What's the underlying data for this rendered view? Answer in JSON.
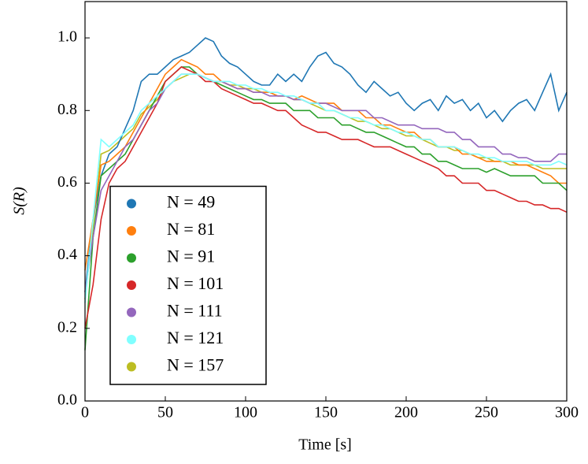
{
  "chart_data": {
    "type": "line",
    "xlabel": "Time [s]",
    "ylabel": "S(R)",
    "xlim": [
      0,
      300
    ],
    "ylim": [
      0,
      1.1
    ],
    "xticks": [
      0,
      50,
      100,
      150,
      200,
      250,
      300
    ],
    "yticks": [
      {
        "value": 0,
        "label": "0.0"
      },
      0.2,
      0.4,
      0.6,
      0.8,
      {
        "value": 1,
        "label": "1.0"
      }
    ],
    "legend": "lower left",
    "x": [
      0,
      5,
      10,
      15,
      20,
      25,
      30,
      35,
      40,
      45,
      50,
      55,
      60,
      65,
      70,
      75,
      80,
      85,
      90,
      95,
      100,
      105,
      110,
      115,
      120,
      125,
      130,
      135,
      140,
      145,
      150,
      155,
      160,
      165,
      170,
      175,
      180,
      185,
      190,
      195,
      200,
      205,
      210,
      215,
      220,
      225,
      230,
      235,
      240,
      245,
      250,
      255,
      260,
      265,
      270,
      275,
      280,
      285,
      290,
      295,
      300
    ],
    "series": [
      {
        "name": "N = 49",
        "color": "#1f77b4",
        "values": [
          0.3,
          0.5,
          0.62,
          0.68,
          0.7,
          0.75,
          0.8,
          0.88,
          0.9,
          0.9,
          0.92,
          0.94,
          0.95,
          0.96,
          0.98,
          1.0,
          0.99,
          0.95,
          0.93,
          0.92,
          0.9,
          0.88,
          0.87,
          0.87,
          0.9,
          0.88,
          0.9,
          0.88,
          0.92,
          0.95,
          0.96,
          0.93,
          0.92,
          0.9,
          0.87,
          0.85,
          0.88,
          0.86,
          0.84,
          0.85,
          0.82,
          0.8,
          0.82,
          0.83,
          0.8,
          0.84,
          0.82,
          0.83,
          0.8,
          0.82,
          0.78,
          0.8,
          0.77,
          0.8,
          0.82,
          0.83,
          0.8,
          0.85,
          0.9,
          0.8,
          0.85
        ]
      },
      {
        "name": "N = 81",
        "color": "#ff7f0e",
        "values": [
          0.36,
          0.5,
          0.65,
          0.66,
          0.68,
          0.7,
          0.74,
          0.78,
          0.82,
          0.86,
          0.9,
          0.92,
          0.94,
          0.93,
          0.92,
          0.9,
          0.9,
          0.88,
          0.87,
          0.86,
          0.86,
          0.85,
          0.85,
          0.85,
          0.84,
          0.84,
          0.83,
          0.84,
          0.83,
          0.82,
          0.82,
          0.82,
          0.8,
          0.8,
          0.8,
          0.78,
          0.78,
          0.76,
          0.76,
          0.75,
          0.74,
          0.74,
          0.72,
          0.72,
          0.7,
          0.7,
          0.7,
          0.68,
          0.68,
          0.67,
          0.66,
          0.66,
          0.66,
          0.66,
          0.65,
          0.65,
          0.64,
          0.63,
          0.62,
          0.6,
          0.6
        ]
      },
      {
        "name": "N = 91",
        "color": "#2ca02c",
        "values": [
          0.14,
          0.45,
          0.62,
          0.64,
          0.66,
          0.68,
          0.72,
          0.76,
          0.8,
          0.84,
          0.88,
          0.9,
          0.92,
          0.92,
          0.9,
          0.89,
          0.88,
          0.87,
          0.86,
          0.85,
          0.84,
          0.83,
          0.83,
          0.82,
          0.82,
          0.82,
          0.8,
          0.8,
          0.8,
          0.78,
          0.78,
          0.78,
          0.76,
          0.76,
          0.75,
          0.74,
          0.74,
          0.73,
          0.72,
          0.71,
          0.7,
          0.7,
          0.68,
          0.68,
          0.66,
          0.66,
          0.65,
          0.64,
          0.64,
          0.64,
          0.63,
          0.64,
          0.63,
          0.62,
          0.62,
          0.62,
          0.62,
          0.6,
          0.6,
          0.6,
          0.58
        ]
      },
      {
        "name": "N = 101",
        "color": "#d62728",
        "values": [
          0.2,
          0.32,
          0.5,
          0.6,
          0.64,
          0.66,
          0.7,
          0.74,
          0.78,
          0.82,
          0.88,
          0.9,
          0.92,
          0.91,
          0.9,
          0.88,
          0.88,
          0.86,
          0.85,
          0.84,
          0.83,
          0.82,
          0.82,
          0.81,
          0.8,
          0.8,
          0.78,
          0.76,
          0.75,
          0.74,
          0.74,
          0.73,
          0.72,
          0.72,
          0.72,
          0.71,
          0.7,
          0.7,
          0.7,
          0.69,
          0.68,
          0.67,
          0.66,
          0.65,
          0.64,
          0.62,
          0.62,
          0.6,
          0.6,
          0.6,
          0.58,
          0.58,
          0.57,
          0.56,
          0.55,
          0.55,
          0.54,
          0.54,
          0.53,
          0.53,
          0.52
        ]
      },
      {
        "name": "N = 111",
        "color": "#9467bd",
        "values": [
          0.3,
          0.45,
          0.58,
          0.62,
          0.66,
          0.7,
          0.72,
          0.76,
          0.8,
          0.82,
          0.86,
          0.88,
          0.9,
          0.9,
          0.9,
          0.89,
          0.88,
          0.88,
          0.87,
          0.86,
          0.86,
          0.85,
          0.85,
          0.84,
          0.84,
          0.84,
          0.83,
          0.83,
          0.82,
          0.82,
          0.82,
          0.81,
          0.8,
          0.8,
          0.8,
          0.8,
          0.78,
          0.78,
          0.77,
          0.76,
          0.76,
          0.76,
          0.75,
          0.75,
          0.75,
          0.74,
          0.74,
          0.72,
          0.72,
          0.7,
          0.7,
          0.7,
          0.68,
          0.68,
          0.67,
          0.67,
          0.66,
          0.66,
          0.66,
          0.68,
          0.68
        ]
      },
      {
        "name": "N = 121",
        "color": "#80ffff",
        "values": [
          0.27,
          0.5,
          0.72,
          0.7,
          0.72,
          0.74,
          0.76,
          0.8,
          0.82,
          0.84,
          0.86,
          0.88,
          0.9,
          0.9,
          0.9,
          0.89,
          0.88,
          0.88,
          0.88,
          0.87,
          0.87,
          0.86,
          0.86,
          0.85,
          0.85,
          0.84,
          0.84,
          0.83,
          0.82,
          0.82,
          0.8,
          0.8,
          0.79,
          0.78,
          0.78,
          0.77,
          0.76,
          0.76,
          0.75,
          0.74,
          0.74,
          0.73,
          0.72,
          0.72,
          0.7,
          0.7,
          0.7,
          0.69,
          0.68,
          0.68,
          0.67,
          0.67,
          0.66,
          0.66,
          0.66,
          0.66,
          0.65,
          0.65,
          0.65,
          0.66,
          0.65
        ]
      },
      {
        "name": "N = 157",
        "color": "#bcbd22",
        "values": [
          0.28,
          0.48,
          0.68,
          0.69,
          0.71,
          0.73,
          0.75,
          0.79,
          0.81,
          0.83,
          0.86,
          0.88,
          0.89,
          0.9,
          0.9,
          0.89,
          0.88,
          0.88,
          0.87,
          0.87,
          0.86,
          0.86,
          0.85,
          0.85,
          0.84,
          0.84,
          0.83,
          0.83,
          0.82,
          0.81,
          0.8,
          0.8,
          0.79,
          0.78,
          0.77,
          0.77,
          0.76,
          0.75,
          0.75,
          0.74,
          0.73,
          0.73,
          0.72,
          0.71,
          0.7,
          0.7,
          0.69,
          0.69,
          0.68,
          0.67,
          0.67,
          0.66,
          0.66,
          0.65,
          0.65,
          0.65,
          0.65,
          0.64,
          0.64,
          0.64,
          0.64
        ]
      }
    ]
  }
}
